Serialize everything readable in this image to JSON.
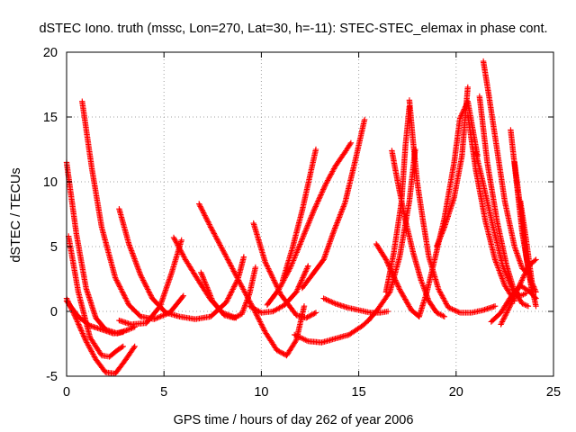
{
  "chart_data": {
    "type": "scatter",
    "title": "dSTEC Iono. truth (mssc, Lon=270, Lat=30, h=-11): STEC-STEC_elemax in phase cont.",
    "xlabel": "GPS time / hours of day 262 of year 2006",
    "ylabel": "dSTEC  / TECUs",
    "xlim": [
      0,
      25
    ],
    "ylim": [
      -5,
      20
    ],
    "xticks": [
      0,
      5,
      10,
      15,
      20,
      25
    ],
    "yticks": [
      -5,
      0,
      5,
      10,
      15,
      20
    ],
    "grid": true,
    "marker": "plus",
    "color": "#ff0000",
    "series": [
      {
        "x": [
          0.0,
          0.5,
          1.0,
          1.5,
          2.0,
          2.6,
          3.2,
          3.5
        ],
        "y": [
          11.5,
          6.0,
          1.8,
          -0.5,
          -1.4,
          -1.7,
          -1.4,
          -1.2
        ]
      },
      {
        "x": [
          0.1,
          0.6,
          1.2,
          1.8,
          2.2,
          2.6,
          2.9
        ],
        "y": [
          5.8,
          1.5,
          -2.0,
          -3.4,
          -3.5,
          -3.0,
          -2.7
        ]
      },
      {
        "x": [
          0.0,
          0.5,
          1.0,
          1.5,
          2.0,
          2.5,
          3.0,
          3.5
        ],
        "y": [
          1.0,
          -0.6,
          -2.3,
          -3.7,
          -4.7,
          -4.8,
          -3.8,
          -2.7
        ]
      },
      {
        "x": [
          0.0,
          0.6,
          1.2,
          1.8,
          2.4,
          2.9
        ],
        "y": [
          0.8,
          -0.4,
          -1.1,
          -1.4,
          -1.7,
          -1.6
        ]
      },
      {
        "x": [
          0.8,
          1.3,
          1.8,
          2.5,
          3.2,
          3.8,
          4.5,
          5.3,
          6.0
        ],
        "y": [
          16.2,
          11.0,
          6.5,
          2.6,
          0.5,
          -0.4,
          -0.6,
          -0.1,
          1.2
        ]
      },
      {
        "x": [
          2.7,
          3.2,
          3.8,
          4.4,
          5.1,
          5.8,
          6.6,
          7.4,
          8.2,
          8.8,
          9.1
        ],
        "y": [
          7.9,
          5.2,
          2.8,
          1.0,
          -0.1,
          -0.4,
          -0.6,
          -0.4,
          0.7,
          2.5,
          4.2
        ]
      },
      {
        "x": [
          2.7,
          3.3,
          4.1,
          4.8,
          5.4,
          5.9
        ],
        "y": [
          -0.7,
          -1.0,
          -0.9,
          0.4,
          3.0,
          5.5
        ]
      },
      {
        "x": [
          5.5,
          6.1,
          6.8,
          7.4,
          8.0,
          8.7
        ],
        "y": [
          5.7,
          4.0,
          2.3,
          0.9,
          -0.1,
          -0.5
        ]
      },
      {
        "x": [
          6.8,
          7.4,
          8.1,
          8.9,
          9.6,
          10.2,
          10.8,
          11.3,
          11.8,
          12.2
        ],
        "y": [
          8.3,
          6.5,
          4.5,
          2.2,
          0.2,
          -1.6,
          -3.0,
          -3.4,
          -2.2,
          0.4
        ]
      },
      {
        "x": [
          6.9,
          7.5,
          8.1,
          8.6,
          9.0,
          9.4,
          9.7
        ],
        "y": [
          3.0,
          0.8,
          -0.3,
          -0.5,
          -0.2,
          1.4,
          3.4
        ]
      },
      {
        "x": [
          9.6,
          10.2,
          11.0,
          11.8,
          12.3,
          12.8
        ],
        "y": [
          6.8,
          3.8,
          1.3,
          -0.3,
          -0.5,
          -0.1
        ]
      },
      {
        "x": [
          9.4,
          10.0,
          10.6,
          11.2,
          11.8,
          12.4
        ],
        "y": [
          0.4,
          -0.1,
          0.0,
          0.5,
          1.5,
          3.5
        ]
      },
      {
        "x": [
          10.3,
          10.9,
          11.5,
          12.1,
          12.7,
          13.3,
          13.8,
          14.3,
          14.6
        ],
        "y": [
          0.5,
          1.7,
          3.4,
          5.6,
          7.8,
          9.8,
          11.2,
          12.3,
          13.0
        ]
      },
      {
        "x": [
          11.1,
          11.6,
          12.1,
          12.5,
          12.8
        ],
        "y": [
          2.4,
          4.9,
          7.8,
          10.5,
          12.5
        ]
      },
      {
        "x": [
          12.1,
          12.6,
          13.2,
          13.7,
          14.3,
          14.8,
          15.3
        ],
        "y": [
          1.8,
          2.8,
          4.0,
          6.1,
          8.4,
          11.5,
          14.8
        ]
      },
      {
        "x": [
          11.7,
          12.4,
          13.1,
          13.8,
          14.5,
          15.2,
          15.5
        ],
        "y": [
          -1.8,
          -2.3,
          -2.4,
          -2.1,
          -1.8,
          -1.1,
          -0.7
        ]
      },
      {
        "x": [
          13.2,
          13.8,
          14.4,
          15.0,
          15.6,
          16.1,
          16.5
        ],
        "y": [
          1.0,
          0.6,
          0.3,
          0.1,
          -0.1,
          -0.1,
          0.0
        ]
      },
      {
        "x": [
          15.5,
          16.0,
          16.6,
          17.1,
          17.6,
          17.9
        ],
        "y": [
          -0.7,
          0.2,
          1.5,
          4.2,
          8.5,
          12.5
        ]
      },
      {
        "x": [
          15.9,
          16.4,
          17.1,
          17.7,
          18.1
        ],
        "y": [
          5.2,
          4.0,
          1.7,
          0.1,
          -0.4
        ]
      },
      {
        "x": [
          16.7,
          17.0,
          17.4,
          17.8,
          18.2,
          18.6,
          19.0,
          19.4
        ],
        "y": [
          12.4,
          10.0,
          7.0,
          4.5,
          2.4,
          0.8,
          -0.1,
          -0.4
        ]
      },
      {
        "x": [
          16.4,
          16.8,
          17.2,
          17.4,
          17.6
        ],
        "y": [
          1.5,
          4.5,
          8.5,
          12.8,
          15.8
        ]
      },
      {
        "x": [
          17.6,
          17.8,
          18.0,
          18.3,
          18.6,
          19.1,
          19.6,
          20.2,
          20.8,
          21.4,
          22.0
        ],
        "y": [
          16.3,
          13.0,
          10.0,
          7.0,
          4.2,
          1.7,
          0.3,
          -0.1,
          -0.1,
          0.1,
          0.4
        ]
      },
      {
        "x": [
          18.1,
          18.5,
          18.9,
          19.4,
          19.9,
          20.2,
          20.6,
          21.1
        ],
        "y": [
          -0.4,
          1.5,
          4.0,
          7.2,
          11.5,
          14.9,
          16.2,
          12.0
        ]
      },
      {
        "x": [
          19.0,
          19.4,
          19.9,
          20.3,
          20.6
        ],
        "y": [
          5.0,
          6.5,
          8.8,
          12.0,
          17.3
        ]
      },
      {
        "x": [
          20.6,
          21.0,
          21.5,
          22.0,
          22.5,
          23.0
        ],
        "y": [
          15.2,
          11.0,
          7.0,
          4.0,
          2.0,
          0.8
        ]
      },
      {
        "x": [
          21.0,
          21.4,
          21.9,
          22.4,
          22.9,
          23.3,
          23.6
        ],
        "y": [
          12.3,
          9.8,
          6.5,
          3.5,
          1.7,
          1.2,
          1.4
        ]
      },
      {
        "x": [
          21.2,
          21.6,
          22.1,
          22.6,
          23.0,
          23.4,
          23.7
        ],
        "y": [
          16.6,
          11.5,
          7.0,
          3.5,
          1.5,
          0.6,
          0.4
        ]
      },
      {
        "x": [
          21.4,
          21.7,
          22.1,
          22.5,
          23.0,
          23.4,
          23.7
        ],
        "y": [
          19.3,
          16.5,
          12.5,
          8.5,
          5.0,
          3.3,
          3.0
        ]
      },
      {
        "x": [
          22.8,
          23.1,
          23.4,
          23.8,
          24.1
        ],
        "y": [
          14.0,
          10.0,
          6.0,
          2.5,
          0.4
        ]
      },
      {
        "x": [
          23.0,
          23.3,
          23.6,
          23.9
        ],
        "y": [
          11.5,
          8.0,
          4.2,
          1.5
        ]
      },
      {
        "x": [
          23.3,
          23.6,
          23.9,
          24.1
        ],
        "y": [
          8.5,
          5.5,
          2.2,
          1.5
        ]
      },
      {
        "x": [
          22.3,
          22.7,
          23.1,
          23.5,
          23.8,
          24.1
        ],
        "y": [
          -1.0,
          0.2,
          1.5,
          2.8,
          3.6,
          4.0
        ]
      },
      {
        "x": [
          21.8,
          22.3,
          22.8,
          23.3,
          23.8,
          24.1
        ],
        "y": [
          -0.8,
          -0.1,
          1.1,
          2.0,
          1.5,
          1.0
        ]
      }
    ]
  }
}
